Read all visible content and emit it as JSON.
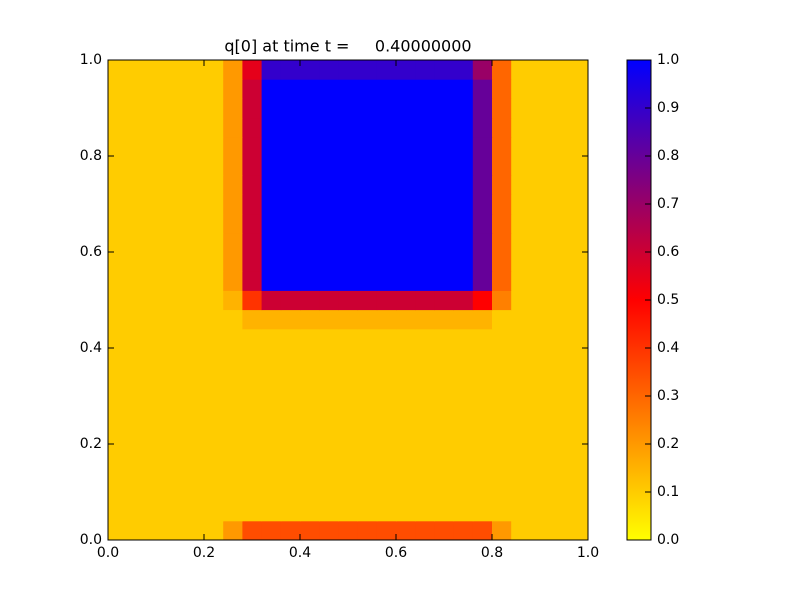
{
  "chart_data": {
    "type": "heatmap",
    "title": "q[0] at time t =     0.40000000",
    "xlim": [
      0,
      1
    ],
    "ylim": [
      0,
      1
    ],
    "xticks": [
      {
        "value": 0,
        "label": "0.0"
      },
      {
        "value": 0.2,
        "label": "0.2"
      },
      {
        "value": 0.4,
        "label": "0.4"
      },
      {
        "value": 0.6,
        "label": "0.6"
      },
      {
        "value": 0.8,
        "label": "0.8"
      },
      {
        "value": 1,
        "label": "1.0"
      }
    ],
    "yticks": [
      {
        "value": 0,
        "label": "0.0"
      },
      {
        "value": 0.2,
        "label": "0.2"
      },
      {
        "value": 0.4,
        "label": "0.4"
      },
      {
        "value": 0.6,
        "label": "0.6"
      },
      {
        "value": 0.8,
        "label": "0.8"
      },
      {
        "value": 1,
        "label": "1.0"
      }
    ],
    "colormap": [
      "#ffff00",
      "#ff0000",
      "#0000ff"
    ],
    "clim": [
      0,
      1
    ],
    "cticks": [
      {
        "value": 0,
        "label": "0.0"
      },
      {
        "value": 0.1,
        "label": "0.1"
      },
      {
        "value": 0.2,
        "label": "0.2"
      },
      {
        "value": 0.3,
        "label": "0.3"
      },
      {
        "value": 0.4,
        "label": "0.4"
      },
      {
        "value": 0.5,
        "label": "0.5"
      },
      {
        "value": 0.6,
        "label": "0.6"
      },
      {
        "value": 0.7,
        "label": "0.7"
      },
      {
        "value": 0.8,
        "label": "0.8"
      },
      {
        "value": 0.9,
        "label": "0.9"
      },
      {
        "value": 1,
        "label": "1.0"
      }
    ],
    "z": [
      [
        0.1,
        0.1,
        0.1,
        0.1,
        0.1,
        0.1,
        0.2,
        0.35,
        0.35,
        0.35,
        0.35,
        0.35,
        0.35,
        0.35,
        0.35,
        0.35,
        0.35,
        0.35,
        0.35,
        0.35,
        0.2,
        0.1,
        0.1,
        0.1,
        0.1
      ],
      [
        0.1,
        0.1,
        0.1,
        0.1,
        0.1,
        0.1,
        0.1,
        0.1,
        0.1,
        0.1,
        0.1,
        0.1,
        0.1,
        0.1,
        0.1,
        0.1,
        0.1,
        0.1,
        0.1,
        0.1,
        0.1,
        0.1,
        0.1,
        0.1,
        0.1
      ],
      [
        0.1,
        0.1,
        0.1,
        0.1,
        0.1,
        0.1,
        0.1,
        0.1,
        0.1,
        0.1,
        0.1,
        0.1,
        0.1,
        0.1,
        0.1,
        0.1,
        0.1,
        0.1,
        0.1,
        0.1,
        0.1,
        0.1,
        0.1,
        0.1,
        0.1
      ],
      [
        0.1,
        0.1,
        0.1,
        0.1,
        0.1,
        0.1,
        0.1,
        0.1,
        0.1,
        0.1,
        0.1,
        0.1,
        0.1,
        0.1,
        0.1,
        0.1,
        0.1,
        0.1,
        0.1,
        0.1,
        0.1,
        0.1,
        0.1,
        0.1,
        0.1
      ],
      [
        0.1,
        0.1,
        0.1,
        0.1,
        0.1,
        0.1,
        0.1,
        0.1,
        0.1,
        0.1,
        0.1,
        0.1,
        0.1,
        0.1,
        0.1,
        0.1,
        0.1,
        0.1,
        0.1,
        0.1,
        0.1,
        0.1,
        0.1,
        0.1,
        0.1
      ],
      [
        0.1,
        0.1,
        0.1,
        0.1,
        0.1,
        0.1,
        0.1,
        0.1,
        0.1,
        0.1,
        0.1,
        0.1,
        0.1,
        0.1,
        0.1,
        0.1,
        0.1,
        0.1,
        0.1,
        0.1,
        0.1,
        0.1,
        0.1,
        0.1,
        0.1
      ],
      [
        0.1,
        0.1,
        0.1,
        0.1,
        0.1,
        0.1,
        0.1,
        0.1,
        0.1,
        0.1,
        0.1,
        0.1,
        0.1,
        0.1,
        0.1,
        0.1,
        0.1,
        0.1,
        0.1,
        0.1,
        0.1,
        0.1,
        0.1,
        0.1,
        0.1
      ],
      [
        0.1,
        0.1,
        0.1,
        0.1,
        0.1,
        0.1,
        0.1,
        0.1,
        0.1,
        0.1,
        0.1,
        0.1,
        0.1,
        0.1,
        0.1,
        0.1,
        0.1,
        0.1,
        0.1,
        0.1,
        0.1,
        0.1,
        0.1,
        0.1,
        0.1
      ],
      [
        0.1,
        0.1,
        0.1,
        0.1,
        0.1,
        0.1,
        0.1,
        0.1,
        0.1,
        0.1,
        0.1,
        0.1,
        0.1,
        0.1,
        0.1,
        0.1,
        0.1,
        0.1,
        0.1,
        0.1,
        0.1,
        0.1,
        0.1,
        0.1,
        0.1
      ],
      [
        0.1,
        0.1,
        0.1,
        0.1,
        0.1,
        0.1,
        0.1,
        0.1,
        0.1,
        0.1,
        0.1,
        0.1,
        0.1,
        0.1,
        0.1,
        0.1,
        0.1,
        0.1,
        0.1,
        0.1,
        0.1,
        0.1,
        0.1,
        0.1,
        0.1
      ],
      [
        0.1,
        0.1,
        0.1,
        0.1,
        0.1,
        0.1,
        0.1,
        0.1,
        0.1,
        0.1,
        0.1,
        0.1,
        0.1,
        0.1,
        0.1,
        0.1,
        0.1,
        0.1,
        0.1,
        0.1,
        0.1,
        0.1,
        0.1,
        0.1,
        0.1
      ],
      [
        0.1,
        0.1,
        0.1,
        0.1,
        0.1,
        0.1,
        0.1,
        0.15,
        0.15,
        0.15,
        0.15,
        0.15,
        0.15,
        0.15,
        0.15,
        0.15,
        0.15,
        0.15,
        0.15,
        0.15,
        0.1,
        0.1,
        0.1,
        0.1,
        0.1
      ],
      [
        0.1,
        0.1,
        0.1,
        0.1,
        0.1,
        0.1,
        0.15,
        0.4,
        0.6,
        0.6,
        0.6,
        0.6,
        0.6,
        0.6,
        0.6,
        0.6,
        0.6,
        0.6,
        0.6,
        0.5,
        0.25,
        0.1,
        0.1,
        0.1,
        0.1
      ],
      [
        0.1,
        0.1,
        0.1,
        0.1,
        0.1,
        0.1,
        0.2,
        0.6,
        1,
        1,
        1,
        1,
        1,
        1,
        1,
        1,
        1,
        1,
        1,
        0.8,
        0.3,
        0.1,
        0.1,
        0.1,
        0.1
      ],
      [
        0.1,
        0.1,
        0.1,
        0.1,
        0.1,
        0.1,
        0.2,
        0.6,
        1,
        1,
        1,
        1,
        1,
        1,
        1,
        1,
        1,
        1,
        1,
        0.8,
        0.3,
        0.1,
        0.1,
        0.1,
        0.1
      ],
      [
        0.1,
        0.1,
        0.1,
        0.1,
        0.1,
        0.1,
        0.2,
        0.6,
        1,
        1,
        1,
        1,
        1,
        1,
        1,
        1,
        1,
        1,
        1,
        0.8,
        0.3,
        0.1,
        0.1,
        0.1,
        0.1
      ],
      [
        0.1,
        0.1,
        0.1,
        0.1,
        0.1,
        0.1,
        0.2,
        0.6,
        1,
        1,
        1,
        1,
        1,
        1,
        1,
        1,
        1,
        1,
        1,
        0.8,
        0.3,
        0.1,
        0.1,
        0.1,
        0.1
      ],
      [
        0.1,
        0.1,
        0.1,
        0.1,
        0.1,
        0.1,
        0.2,
        0.6,
        1,
        1,
        1,
        1,
        1,
        1,
        1,
        1,
        1,
        1,
        1,
        0.8,
        0.3,
        0.1,
        0.1,
        0.1,
        0.1
      ],
      [
        0.1,
        0.1,
        0.1,
        0.1,
        0.1,
        0.1,
        0.2,
        0.6,
        1,
        1,
        1,
        1,
        1,
        1,
        1,
        1,
        1,
        1,
        1,
        0.8,
        0.3,
        0.1,
        0.1,
        0.1,
        0.1
      ],
      [
        0.1,
        0.1,
        0.1,
        0.1,
        0.1,
        0.1,
        0.2,
        0.6,
        1,
        1,
        1,
        1,
        1,
        1,
        1,
        1,
        1,
        1,
        1,
        0.8,
        0.3,
        0.1,
        0.1,
        0.1,
        0.1
      ],
      [
        0.1,
        0.1,
        0.1,
        0.1,
        0.1,
        0.1,
        0.2,
        0.6,
        1,
        1,
        1,
        1,
        1,
        1,
        1,
        1,
        1,
        1,
        1,
        0.8,
        0.3,
        0.1,
        0.1,
        0.1,
        0.1
      ],
      [
        0.1,
        0.1,
        0.1,
        0.1,
        0.1,
        0.1,
        0.2,
        0.6,
        1,
        1,
        1,
        1,
        1,
        1,
        1,
        1,
        1,
        1,
        1,
        0.8,
        0.3,
        0.1,
        0.1,
        0.1,
        0.1
      ],
      [
        0.1,
        0.1,
        0.1,
        0.1,
        0.1,
        0.1,
        0.2,
        0.6,
        1,
        1,
        1,
        1,
        1,
        1,
        1,
        1,
        1,
        1,
        1,
        0.8,
        0.3,
        0.1,
        0.1,
        0.1,
        0.1
      ],
      [
        0.1,
        0.1,
        0.1,
        0.1,
        0.1,
        0.1,
        0.2,
        0.6,
        1,
        1,
        1,
        1,
        1,
        1,
        1,
        1,
        1,
        1,
        1,
        0.8,
        0.3,
        0.1,
        0.1,
        0.1,
        0.1
      ],
      [
        0.1,
        0.1,
        0.1,
        0.1,
        0.1,
        0.1,
        0.2,
        0.55,
        0.9,
        0.9,
        0.9,
        0.9,
        0.9,
        0.9,
        0.9,
        0.9,
        0.9,
        0.9,
        0.9,
        0.7,
        0.3,
        0.1,
        0.1,
        0.1,
        0.1
      ]
    ]
  }
}
